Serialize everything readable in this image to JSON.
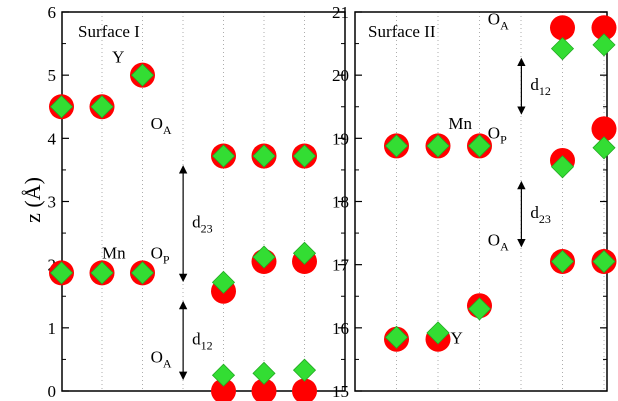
{
  "chart_data": [
    {
      "type": "scatter",
      "title": "Surface I",
      "ylabel": "z (Å)",
      "ylim": [
        0,
        6
      ],
      "yticks": [
        "0",
        "1",
        "2",
        "3",
        "4",
        "5",
        "6"
      ],
      "columns": 7,
      "grid": true,
      "series": [
        {
          "marker": "circle",
          "color": "#ff0000",
          "points": [
            [
              0,
              4.5
            ],
            [
              1,
              4.5
            ],
            [
              2,
              5.0
            ],
            [
              0,
              1.87
            ],
            [
              1,
              1.87
            ],
            [
              2,
              1.87
            ],
            [
              4,
              3.72
            ],
            [
              5,
              3.72
            ],
            [
              6,
              3.72
            ],
            [
              4,
              1.58
            ],
            [
              5,
              2.05
            ],
            [
              6,
              2.05
            ],
            [
              4,
              0.0
            ],
            [
              5,
              0.0
            ],
            [
              6,
              0.0
            ]
          ]
        },
        {
          "marker": "diamond",
          "color": "#33dd33",
          "points": [
            [
              0,
              4.5
            ],
            [
              1,
              4.5
            ],
            [
              2,
              5.0
            ],
            [
              0,
              1.87
            ],
            [
              1,
              1.87
            ],
            [
              2,
              1.87
            ],
            [
              4,
              3.72
            ],
            [
              5,
              3.72
            ],
            [
              6,
              3.72
            ],
            [
              4,
              1.72
            ],
            [
              5,
              2.12
            ],
            [
              6,
              2.18
            ],
            [
              4,
              0.25
            ],
            [
              5,
              0.28
            ],
            [
              6,
              0.33
            ]
          ]
        }
      ],
      "annotations": [
        {
          "text": "Y",
          "x": 2.25,
          "y": 5.2
        },
        {
          "text": "Mn",
          "x": 2.0,
          "y": 2.1
        },
        {
          "text": "O",
          "sub": "A",
          "x": 3.2,
          "y": 4.15
        },
        {
          "text": "O",
          "sub": "P",
          "x": 3.2,
          "y": 2.1
        },
        {
          "text": "O",
          "sub": "A",
          "x": 3.2,
          "y": 0.45
        }
      ],
      "arrows": [
        {
          "x": 4.25,
          "y1": 1.75,
          "y2": 3.55,
          "label": "d",
          "sub": "23"
        },
        {
          "x": 4.25,
          "y1": 0.2,
          "y2": 1.4,
          "label": "d",
          "sub": "12"
        }
      ]
    },
    {
      "type": "scatter",
      "title": "Surface II",
      "ylim": [
        15,
        21
      ],
      "yticks": [
        "15",
        "16",
        "17",
        "18",
        "19",
        "20",
        "21"
      ],
      "columns": 7,
      "grid": true,
      "series": [
        {
          "marker": "circle",
          "color": "#ff0000",
          "points": [
            [
              0,
              18.88
            ],
            [
              1,
              18.88
            ],
            [
              2,
              18.88
            ],
            [
              0,
              15.82
            ],
            [
              1,
              15.82
            ],
            [
              2,
              16.35
            ],
            [
              4,
              20.75
            ],
            [
              5,
              20.75
            ],
            [
              6,
              20.75
            ],
            [
              4,
              18.65
            ],
            [
              5,
              19.15
            ],
            [
              6,
              19.15
            ],
            [
              4,
              17.05
            ],
            [
              5,
              17.05
            ],
            [
              6,
              17.05
            ]
          ]
        },
        {
          "marker": "diamond",
          "color": "#33dd33",
          "points": [
            [
              0,
              18.88
            ],
            [
              1,
              18.88
            ],
            [
              2,
              18.88
            ],
            [
              0,
              15.85
            ],
            [
              1,
              15.92
            ],
            [
              2,
              16.3
            ],
            [
              4,
              20.42
            ],
            [
              5,
              20.48
            ],
            [
              6,
              20.52
            ],
            [
              4,
              18.55
            ],
            [
              5,
              18.85
            ],
            [
              6,
              18.98
            ],
            [
              4,
              17.05
            ],
            [
              5,
              17.05
            ],
            [
              6,
              17.05
            ]
          ]
        }
      ],
      "annotations": [
        {
          "text": "Mn",
          "x": 2.25,
          "y": 19.15
        },
        {
          "text": "Y",
          "x": 2.3,
          "y": 15.75
        },
        {
          "text": "O",
          "sub": "A",
          "x": 3.2,
          "y": 20.8
        },
        {
          "text": "O",
          "sub": "P",
          "x": 3.2,
          "y": 19.0
        },
        {
          "text": "O",
          "sub": "A",
          "x": 3.2,
          "y": 17.3
        }
      ],
      "arrows": [
        {
          "x": 4.25,
          "y1": 19.4,
          "y2": 20.25,
          "label": "d",
          "sub": "12"
        },
        {
          "x": 4.25,
          "y1": 17.3,
          "y2": 18.3,
          "label": "d",
          "sub": "23"
        }
      ]
    }
  ]
}
